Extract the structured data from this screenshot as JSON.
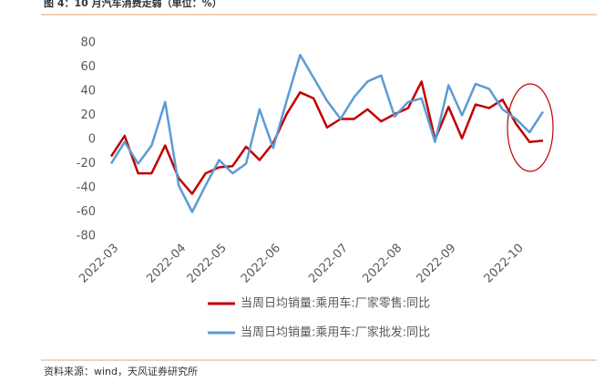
{
  "chart_data": {
    "type": "line",
    "title": "图 4：10 月汽车消费走弱（单位：%）",
    "source": "资料来源：wind，天风证券研究所",
    "categories": [
      "2022-03",
      null,
      null,
      null,
      null,
      "2022-04",
      null,
      null,
      "2022-05",
      null,
      null,
      null,
      "2022-06",
      null,
      null,
      null,
      null,
      "2022-07",
      null,
      null,
      null,
      "2022-08",
      null,
      null,
      null,
      "2022-09",
      null,
      null,
      null,
      null,
      "2022-10",
      null,
      null
    ],
    "series": [
      {
        "name": "当周日均销量:乘用车:厂家零售:同比",
        "color": "#c00000",
        "values": [
          -14,
          3,
          -28,
          -28,
          -5,
          -32,
          -45,
          -28,
          -23,
          -22,
          -6,
          -17,
          -3,
          21,
          39,
          34,
          10,
          17,
          17,
          25,
          15,
          21,
          26,
          48,
          0,
          27,
          1,
          29,
          26,
          33,
          13,
          -2,
          -1
        ]
      },
      {
        "name": "当周日均销量:乘用车:厂家批发:同比",
        "color": "#5b9bd5",
        "values": [
          -20,
          -2,
          -20,
          -5,
          31,
          -38,
          -60,
          -38,
          -17,
          -28,
          -20,
          25,
          -7,
          32,
          70,
          51,
          32,
          17,
          35,
          48,
          53,
          19,
          31,
          34,
          -2,
          45,
          20,
          46,
          42,
          25,
          17,
          6,
          23
        ]
      }
    ],
    "ylim": [
      -80,
      80
    ],
    "yticks": [
      -80,
      -60,
      -40,
      -20,
      0,
      20,
      40,
      60,
      80
    ],
    "grid": false
  }
}
